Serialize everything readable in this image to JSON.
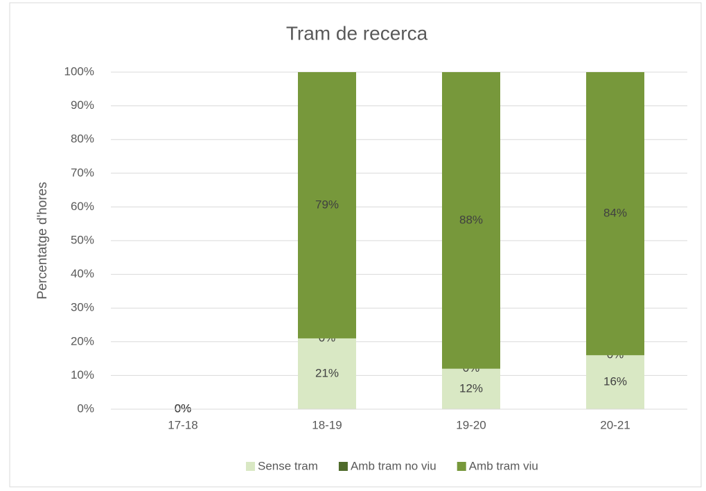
{
  "chart_data": {
    "type": "stacked_bar",
    "title": "Tram de recerca",
    "y_label": "Percentatge d'hores",
    "categories": [
      "17-18",
      "18-19",
      "19-20",
      "20-21"
    ],
    "series": [
      {
        "name": "Sense tram",
        "color": "#d9e8c4",
        "values": [
          0,
          21,
          12,
          16
        ],
        "value_labels": [
          "0%",
          "21%",
          "12%",
          "16%"
        ]
      },
      {
        "name": "Amb tram no viu",
        "color": "#4f6b2b",
        "values": [
          0,
          0,
          0,
          0
        ],
        "value_labels": [
          "0%",
          "0%",
          "0%",
          "0%"
        ]
      },
      {
        "name": "Amb tram viu",
        "color": "#77983b",
        "values": [
          0,
          79,
          88,
          84
        ],
        "value_labels": [
          "0%",
          "79%",
          "88%",
          "84%"
        ]
      }
    ],
    "ylim": [
      0,
      100
    ],
    "yticks": [
      {
        "value": 0,
        "label": "0%"
      },
      {
        "value": 10,
        "label": "10%"
      },
      {
        "value": 20,
        "label": "20%"
      },
      {
        "value": 30,
        "label": "30%"
      },
      {
        "value": 40,
        "label": "40%"
      },
      {
        "value": 50,
        "label": "50%"
      },
      {
        "value": 60,
        "label": "60%"
      },
      {
        "value": 70,
        "label": "70%"
      },
      {
        "value": 80,
        "label": "80%"
      },
      {
        "value": 90,
        "label": "90%"
      },
      {
        "value": 100,
        "label": "100%"
      }
    ],
    "grid": true,
    "legend": "bottom"
  }
}
